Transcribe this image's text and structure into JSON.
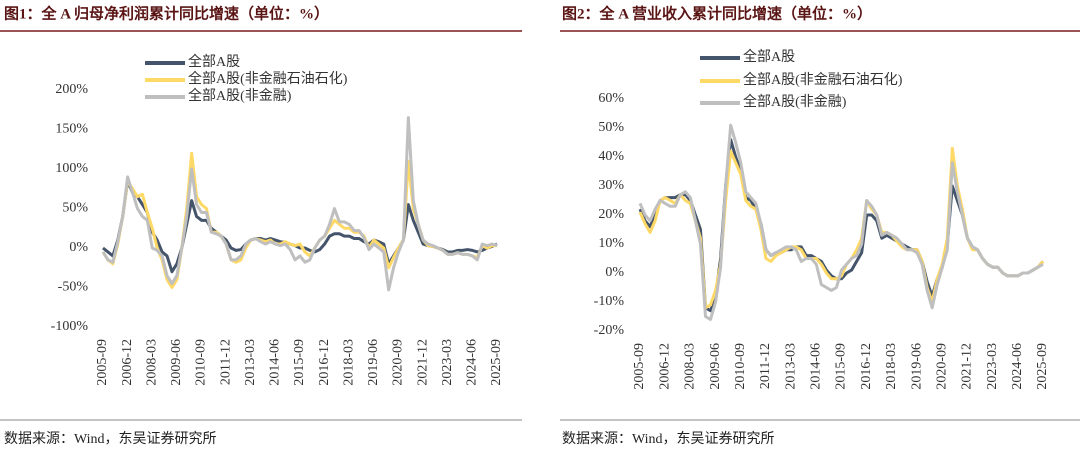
{
  "chart_data": [
    {
      "type": "line",
      "title": "图1：全 A 归母净利润累计同比增速（单位：%）",
      "source": "数据来源：Wind，东吴证券研究所",
      "categories": [
        "2005-09",
        null,
        null,
        null,
        null,
        "2006-12",
        null,
        null,
        null,
        null,
        "2008-03",
        null,
        null,
        null,
        null,
        "2009-06",
        null,
        null,
        null,
        null,
        "2010-09",
        null,
        null,
        null,
        null,
        "2011-12",
        null,
        null,
        null,
        null,
        "2013-03",
        null,
        null,
        null,
        null,
        "2014-06",
        null,
        null,
        null,
        null,
        "2015-09",
        null,
        null,
        null,
        null,
        "2016-12",
        null,
        null,
        null,
        null,
        "2018-03",
        null,
        null,
        null,
        null,
        "2019-06",
        null,
        null,
        null,
        null,
        "2020-09",
        null,
        null,
        null,
        null,
        "2021-12",
        null,
        null,
        null,
        null,
        "2023-03",
        null,
        null,
        null,
        null,
        "2024-06",
        null,
        null,
        null,
        null,
        "2025-09"
      ],
      "ylim": [
        -100,
        200
      ],
      "yticks": [
        {
          "value": -100,
          "label": "-100%"
        },
        {
          "value": -50,
          "label": "-50%"
        },
        {
          "value": 0,
          "label": "0%"
        },
        {
          "value": 50,
          "label": "50%"
        },
        {
          "value": 100,
          "label": "100%"
        },
        {
          "value": 150,
          "label": "150%"
        },
        {
          "value": 200,
          "label": "200%"
        }
      ],
      "series": [
        {
          "name": "全部A股",
          "color": "#44546a",
          "values": [
            0,
            -5,
            -10,
            10,
            40,
            85,
            70,
            65,
            55,
            45,
            20,
            10,
            -5,
            -10,
            -30,
            -20,
            0,
            30,
            60,
            40,
            35,
            35,
            25,
            20,
            15,
            10,
            0,
            -3,
            -2,
            5,
            10,
            12,
            12,
            10,
            12,
            10,
            8,
            7,
            5,
            3,
            0,
            0,
            -3,
            -5,
            -2,
            5,
            15,
            18,
            18,
            15,
            15,
            12,
            12,
            8,
            5,
            10,
            8,
            5,
            -20,
            -10,
            0,
            10,
            55,
            35,
            20,
            5,
            3,
            2,
            0,
            -2,
            -5,
            -5,
            -3,
            -3,
            -2,
            -3,
            -5,
            -3,
            0,
            2,
            5
          ]
        },
        {
          "name": "全部A股(非金融石油石化)",
          "color": "#ffd966",
          "values": [
            -5,
            -15,
            -20,
            5,
            40,
            85,
            75,
            65,
            68,
            45,
            25,
            0,
            -15,
            -40,
            -50,
            -40,
            0,
            50,
            120,
            65,
            55,
            50,
            20,
            20,
            15,
            5,
            -15,
            -18,
            -15,
            0,
            10,
            12,
            10,
            8,
            10,
            5,
            5,
            8,
            5,
            3,
            5,
            -5,
            -10,
            0,
            10,
            15,
            25,
            35,
            30,
            25,
            25,
            20,
            20,
            15,
            0,
            10,
            5,
            0,
            -25,
            -12,
            0,
            10,
            110,
            50,
            30,
            10,
            3,
            2,
            0,
            -3,
            -8,
            -8,
            -6,
            -8,
            -8,
            -10,
            -12,
            3,
            0,
            3,
            3
          ]
        },
        {
          "name": "全部A股(非金融)",
          "color": "#bfbfbf",
          "values": [
            -5,
            -15,
            -18,
            8,
            40,
            90,
            70,
            50,
            40,
            35,
            0,
            -3,
            -10,
            -35,
            -45,
            -35,
            0,
            40,
            100,
            55,
            45,
            45,
            20,
            18,
            15,
            5,
            -15,
            -15,
            -10,
            5,
            10,
            12,
            8,
            5,
            8,
            5,
            3,
            5,
            -2,
            -15,
            -10,
            -18,
            -15,
            0,
            10,
            15,
            30,
            50,
            33,
            33,
            30,
            22,
            22,
            13,
            -2,
            5,
            0,
            -5,
            -53,
            -25,
            -5,
            10,
            165,
            60,
            30,
            10,
            5,
            3,
            0,
            -3,
            -8,
            -8,
            -6,
            -8,
            -8,
            -10,
            -15,
            5,
            3,
            5,
            3
          ]
        }
      ]
    },
    {
      "type": "line",
      "title": "图2：全 A 营业收入累计同比增速（单位：%）",
      "source": "数据来源：Wind，东吴证券研究所",
      "categories": [
        "2005-09",
        null,
        null,
        null,
        null,
        "2006-12",
        null,
        null,
        null,
        null,
        "2008-03",
        null,
        null,
        null,
        null,
        "2009-06",
        null,
        null,
        null,
        null,
        "2010-09",
        null,
        null,
        null,
        null,
        "2011-12",
        null,
        null,
        null,
        null,
        "2013-03",
        null,
        null,
        null,
        null,
        "2014-06",
        null,
        null,
        null,
        null,
        "2015-09",
        null,
        null,
        null,
        null,
        "2016-12",
        null,
        null,
        null,
        null,
        "2018-03",
        null,
        null,
        null,
        null,
        "2019-06",
        null,
        null,
        null,
        null,
        "2020-09",
        null,
        null,
        null,
        null,
        "2021-12",
        null,
        null,
        null,
        null,
        "2023-03",
        null,
        null,
        null,
        null,
        "2024-06",
        null,
        null,
        null,
        null,
        "2025-09"
      ],
      "ylim": [
        -20,
        60
      ],
      "yticks": [
        {
          "value": -20,
          "label": "-20%"
        },
        {
          "value": -10,
          "label": "-10%"
        },
        {
          "value": 0,
          "label": "0%"
        },
        {
          "value": 10,
          "label": "10%"
        },
        {
          "value": 20,
          "label": "20%"
        },
        {
          "value": 30,
          "label": "30%"
        },
        {
          "value": 40,
          "label": "40%"
        },
        {
          "value": 50,
          "label": "50%"
        },
        {
          "value": 60,
          "label": "60%"
        }
      ],
      "series": [
        {
          "name": "全部A股",
          "color": "#44546a",
          "values": [
            22,
            18,
            16,
            20,
            25,
            26,
            26,
            26,
            27,
            27,
            25,
            20,
            15,
            -12,
            -13,
            -8,
            5,
            30,
            46,
            40,
            35,
            26,
            25,
            22,
            17,
            8,
            6,
            7,
            7,
            8,
            8,
            9,
            9,
            6,
            6,
            5,
            4,
            1,
            -1,
            -2,
            -2,
            0,
            1,
            4,
            7,
            20,
            20,
            18,
            12,
            13,
            12,
            11,
            10,
            9,
            8,
            8,
            4,
            -3,
            -8,
            -2,
            2,
            10,
            30,
            25,
            20,
            12,
            9,
            8,
            5,
            3,
            2,
            2,
            0,
            -1,
            -1,
            -1,
            0,
            0,
            1,
            2,
            4
          ]
        },
        {
          "name": "全部A股(非金融石油石化)",
          "color": "#ffd966",
          "values": [
            21,
            17,
            14,
            18,
            25,
            26,
            25,
            24,
            27,
            25,
            24,
            18,
            12,
            -12,
            -11,
            -6,
            3,
            25,
            42,
            38,
            34,
            25,
            23,
            22,
            15,
            5,
            4,
            6,
            7,
            8,
            9,
            9,
            8,
            5,
            5,
            5,
            3,
            0,
            -2,
            -2,
            -1,
            3,
            5,
            8,
            12,
            25,
            22,
            20,
            14,
            14,
            13,
            11,
            9,
            8,
            8,
            8,
            4,
            -5,
            -10,
            -2,
            3,
            12,
            43,
            30,
            22,
            12,
            8,
            8,
            5,
            3,
            2,
            2,
            0,
            -1,
            -1,
            -1,
            0,
            0,
            1,
            2,
            4
          ]
        },
        {
          "name": "全部A股(非金融)",
          "color": "#bfbfbf",
          "values": [
            24,
            20,
            18,
            22,
            25,
            24,
            23,
            23,
            27,
            28,
            26,
            18,
            10,
            -15,
            -16,
            -10,
            2,
            30,
            51,
            45,
            38,
            28,
            26,
            24,
            17,
            8,
            6,
            7,
            8,
            9,
            9,
            8,
            4,
            5,
            5,
            3,
            -4,
            -5,
            -6,
            -5,
            1,
            3,
            5,
            6,
            10,
            25,
            23,
            20,
            13,
            14,
            13,
            12,
            10,
            8,
            8,
            7,
            3,
            -6,
            -12,
            -4,
            2,
            8,
            38,
            28,
            20,
            12,
            9,
            8,
            5,
            3,
            2,
            2,
            0,
            -1,
            -1,
            -1,
            0,
            0,
            1,
            2,
            3
          ]
        }
      ]
    }
  ]
}
